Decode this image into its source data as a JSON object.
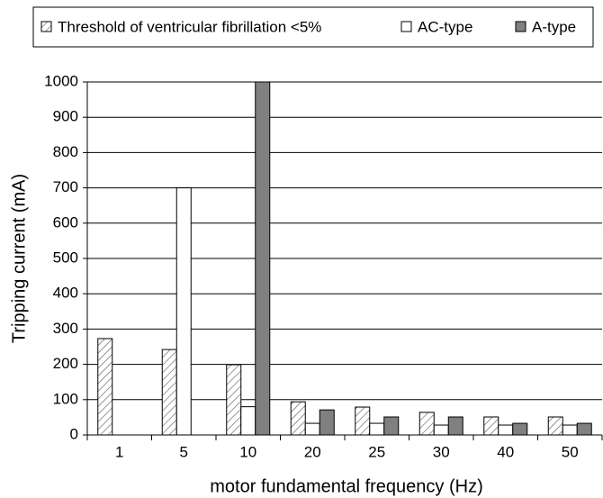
{
  "chart_data": {
    "type": "bar",
    "xlabel": "motor fundamental frequency (Hz)",
    "ylabel": "Tripping current (mA)",
    "categories": [
      "1",
      "5",
      "10",
      "20",
      "25",
      "30",
      "40",
      "50"
    ],
    "series": [
      {
        "name": "Threshold of ventricular fibrillation <5%",
        "color": "#ffffff",
        "hatch": true,
        "values": [
          273,
          242,
          199,
          94,
          79,
          64,
          51,
          51
        ]
      },
      {
        "name": "AC-type",
        "color": "#ffffff",
        "hatch": false,
        "values": [
          null,
          700,
          80,
          33,
          33,
          28,
          28,
          28
        ]
      },
      {
        "name": "A-type",
        "color": "#808080",
        "hatch": false,
        "values": [
          null,
          null,
          1000,
          71,
          51,
          51,
          33,
          33
        ]
      }
    ],
    "ylim": [
      0,
      1000
    ],
    "yticks": [
      0,
      100,
      200,
      300,
      400,
      500,
      600,
      700,
      800,
      900,
      1000
    ],
    "grid": true,
    "legend": "top"
  }
}
